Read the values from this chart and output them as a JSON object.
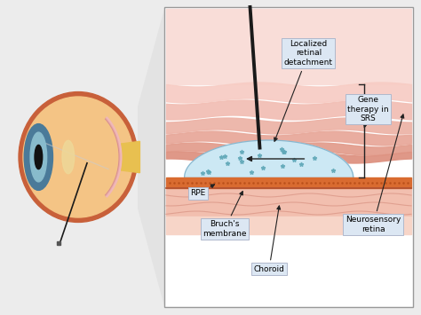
{
  "bg_color": "#ececec",
  "panel_bg": "#ffffff",
  "panel_edge": "#999999",
  "trap_color": "#e2e2e2",
  "labels": {
    "localized_retinal_detachment": "Localized\nretinal\ndetachment",
    "gene_therapy": "Gene\ntherapy in\nSRS",
    "rpe": "RPE",
    "bruchs": "Bruch's\nmembrane",
    "choroid": "Choroid",
    "neurosensory": "Neurosensory\nretina"
  },
  "label_box_color": "#dce7f3",
  "label_box_edge": "#b0b8cc",
  "arrow_color": "#222222",
  "needle_color": "#1a1a1a",
  "retina_layers": [
    "#f7cdc5",
    "#f2bfb5",
    "#edb4a8",
    "#e8a99b",
    "#e39e8e",
    "#de9382"
  ],
  "bleb_color": "#cce8f4",
  "bleb_edge": "#88b8d0",
  "rpe_color": "#d96b30",
  "rpe_dot_color": "#b84e18",
  "choroid_color": "#f2bfaf",
  "choroid_wave_color": "#e0a090",
  "lower_pink": "#f7d5c8",
  "font_size": 6.5,
  "eye_sclera": "#f4c485",
  "eye_outer": "#c8603a",
  "eye_iris": "#4a7a99",
  "eye_iris_light": "#88bbcc",
  "eye_lens": "#eed898",
  "eye_nerve": "#e8c050",
  "eye_retina_lines": [
    "#d89090",
    "#e8a8a8",
    "#f0b8b8"
  ]
}
